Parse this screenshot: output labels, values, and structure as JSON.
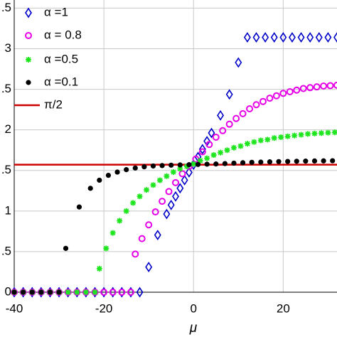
{
  "chart_data": {
    "type": "scatter",
    "xlabel": "μ",
    "grid": true,
    "legend": "upper left",
    "xlim": [
      -40,
      32
    ],
    "ylim": [
      0,
      3.6
    ],
    "xticks": [
      -40,
      -20,
      0,
      20
    ],
    "yticks": [
      0,
      {
        "value": 0.5,
        "label": ".5"
      },
      1,
      {
        "value": 1.5,
        "label": ".5"
      },
      2,
      {
        "value": 2.5,
        "label": ".5"
      },
      3,
      {
        "value": 3.5,
        "label": ".5"
      }
    ],
    "series": [
      {
        "name": "α =1",
        "color": "#0000c8",
        "marker": "diamond",
        "x": [
          -40,
          -38,
          -36,
          -34,
          -32,
          -30,
          -28,
          -26,
          -24,
          -22,
          -20,
          -18,
          -16,
          -14,
          -12,
          -10,
          -8,
          -6,
          -5,
          -4,
          -3,
          -2,
          -1,
          0,
          1,
          2,
          3,
          4,
          6,
          8,
          10,
          12,
          14,
          16,
          18,
          20,
          22,
          24,
          26,
          28,
          30,
          32
        ],
        "values": [
          0,
          0,
          0,
          0,
          0,
          0,
          0,
          0,
          0,
          0,
          0,
          0,
          0,
          0,
          0,
          0.31,
          0.705,
          0.963,
          1.075,
          1.18,
          1.281,
          1.38,
          1.476,
          1.571,
          1.666,
          1.762,
          1.861,
          1.962,
          2.178,
          2.437,
          2.83,
          3.14,
          3.14,
          3.14,
          3.14,
          3.14,
          3.14,
          3.14,
          3.14,
          3.14,
          3.14,
          3.14
        ]
      },
      {
        "name": "α = 0.8",
        "color": "#e600e6",
        "marker": "circle",
        "x": [
          -40,
          -38,
          -36,
          -34,
          -32,
          -30,
          -28,
          -26,
          -24,
          -22,
          -20,
          -18,
          -16,
          -14,
          -13,
          -11.5,
          -10,
          -8.5,
          -7,
          -5.5,
          -4,
          -2.5,
          -1,
          0.5,
          2,
          3.5,
          5,
          6.5,
          8,
          9.5,
          11,
          12.5,
          14,
          15.5,
          17,
          18.5,
          20,
          21.5,
          23,
          24.5,
          26,
          27.5,
          29,
          30.5,
          32
        ],
        "values": [
          0,
          0,
          0,
          0,
          0,
          0,
          0,
          0,
          0,
          0,
          0,
          0,
          0,
          0,
          0.47,
          0.66,
          0.83,
          0.99,
          1.12,
          1.24,
          1.35,
          1.46,
          1.55,
          1.64,
          1.73,
          1.82,
          1.91,
          1.99,
          2.07,
          2.14,
          2.2,
          2.26,
          2.31,
          2.35,
          2.39,
          2.42,
          2.45,
          2.47,
          2.49,
          2.51,
          2.52,
          2.53,
          2.54,
          2.545,
          2.55
        ]
      },
      {
        "name": "α =0.5",
        "color": "#1ee61e",
        "marker": "asterisk",
        "x": [
          -40,
          -38,
          -36,
          -34,
          -32,
          -30,
          -28,
          -26,
          -24,
          -22,
          -21,
          -19.5,
          -18,
          -16.5,
          -15,
          -13.5,
          -12,
          -10.5,
          -9,
          -7.5,
          -6,
          -4.5,
          -3,
          -1.5,
          0,
          1.5,
          3,
          4.5,
          6,
          7.5,
          9,
          10.5,
          12,
          13.5,
          15,
          16.5,
          18,
          19.5,
          21,
          22.5,
          24,
          25.5,
          27,
          28.5,
          30,
          31.5
        ],
        "values": [
          0,
          0,
          0,
          0,
          0,
          0,
          0,
          0,
          0,
          0,
          0.29,
          0.54,
          0.73,
          0.88,
          1.0,
          1.1,
          1.18,
          1.26,
          1.32,
          1.38,
          1.43,
          1.48,
          1.52,
          1.55,
          1.58,
          1.62,
          1.65,
          1.69,
          1.72,
          1.75,
          1.78,
          1.8,
          1.83,
          1.85,
          1.87,
          1.88,
          1.9,
          1.91,
          1.92,
          1.93,
          1.94,
          1.95,
          1.955,
          1.96,
          1.965,
          1.97
        ]
      },
      {
        "name": "α =0.1",
        "color": "#000000",
        "marker": "dot",
        "x": [
          -40,
          -38,
          -36,
          -34,
          -32,
          -30,
          -28.5,
          -25.5,
          -23,
          -21,
          -19,
          -17,
          -15,
          -13,
          -11,
          -9,
          -7,
          -5,
          -3,
          -1,
          1,
          3,
          5,
          7,
          9,
          11,
          13,
          15,
          17,
          19,
          21,
          23,
          25,
          27,
          29,
          31
        ],
        "values": [
          0,
          0,
          0,
          0,
          0,
          0,
          0.54,
          1.05,
          1.28,
          1.38,
          1.44,
          1.48,
          1.51,
          1.53,
          1.545,
          1.555,
          1.56,
          1.565,
          1.568,
          1.571,
          1.574,
          1.577,
          1.58,
          1.585,
          1.59,
          1.595,
          1.6,
          1.603,
          1.606,
          1.609,
          1.611,
          1.613,
          1.615,
          1.617,
          1.618,
          1.62
        ]
      }
    ],
    "reference_line": {
      "name": "π/2",
      "value": 1.5708,
      "color": "#cc0000"
    }
  }
}
